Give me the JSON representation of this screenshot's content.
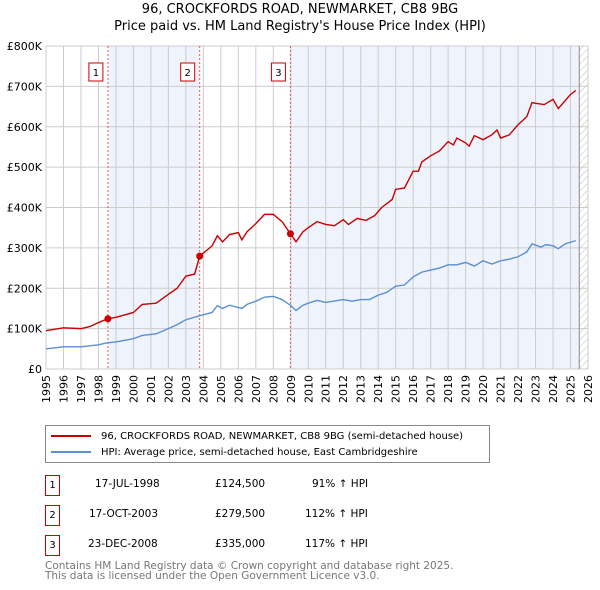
{
  "title": "96, CROCKFORDS ROAD, NEWMARKET, CB8 9BG",
  "subtitle": "Price paid vs. HM Land Registry's House Price Index (HPI)",
  "chart_data": {
    "type": "line",
    "xlim": [
      1995,
      2026
    ],
    "ylim": [
      0,
      800000
    ],
    "x_ticks": [
      "1995",
      "1996",
      "1997",
      "1998",
      "1999",
      "2000",
      "2001",
      "2002",
      "2003",
      "2004",
      "2005",
      "2006",
      "2007",
      "2008",
      "2009",
      "2010",
      "2011",
      "2012",
      "2013",
      "2014",
      "2015",
      "2016",
      "2017",
      "2018",
      "2019",
      "2020",
      "2021",
      "2022",
      "2023",
      "2024",
      "2025",
      "2026"
    ],
    "y_ticks": [
      {
        "v": 0,
        "label": "£0"
      },
      {
        "v": 100000,
        "label": "£100K"
      },
      {
        "v": 200000,
        "label": "£200K"
      },
      {
        "v": 300000,
        "label": "£300K"
      },
      {
        "v": 400000,
        "label": "£400K"
      },
      {
        "v": 500000,
        "label": "£500K"
      },
      {
        "v": 600000,
        "label": "£600K"
      },
      {
        "v": 700000,
        "label": "£700K"
      },
      {
        "v": 800000,
        "label": "£800K"
      }
    ],
    "grid": true,
    "shaded_ranges": [
      [
        1998.54,
        2003.79
      ],
      [
        2008.98,
        2025.5
      ]
    ],
    "hatched_from": 2025.5,
    "series": [
      {
        "name": "96, CROCKFORDS ROAD, NEWMARKET, CB8 9BG (semi-detached house)",
        "color": "#cc0000",
        "x": [
          1995,
          1996,
          1997,
          1997.5,
          1998,
          1998.54,
          1999,
          2000,
          2000.5,
          2001.3,
          2002,
          2002.5,
          2003,
          2003.5,
          2003.79,
          2004.5,
          2004.8,
          2005.1,
          2005.5,
          2006,
          2006.2,
          2006.5,
          2007,
          2007.5,
          2008,
          2008.5,
          2008.98,
          2009.3,
          2009.7,
          2010,
          2010.5,
          2011,
          2011.5,
          2012,
          2012.3,
          2012.8,
          2013.3,
          2013.8,
          2014.2,
          2014.8,
          2015,
          2015.5,
          2016,
          2016.3,
          2016.5,
          2017,
          2017.5,
          2018,
          2018.3,
          2018.5,
          2019,
          2019.2,
          2019.5,
          2020,
          2020.5,
          2020.8,
          2021,
          2021.5,
          2022,
          2022.5,
          2022.8,
          2023,
          2023.5,
          2024,
          2024.3,
          2024.7,
          2025,
          2025.3
        ],
        "y": [
          95000,
          102000,
          100000,
          105000,
          115000,
          124500,
          128000,
          140000,
          160000,
          163000,
          185000,
          200000,
          230000,
          235000,
          279500,
          305000,
          330000,
          315000,
          333000,
          338000,
          320000,
          340000,
          360000,
          383000,
          383000,
          365000,
          335000,
          315000,
          340000,
          350000,
          365000,
          358000,
          355000,
          370000,
          358000,
          373000,
          368000,
          380000,
          400000,
          420000,
          445000,
          448000,
          490000,
          490000,
          513000,
          528000,
          540000,
          563000,
          555000,
          572000,
          560000,
          552000,
          578000,
          568000,
          580000,
          592000,
          572000,
          580000,
          605000,
          625000,
          660000,
          658000,
          655000,
          668000,
          645000,
          665000,
          680000,
          690000
        ]
      },
      {
        "name": "HPI: Average price, semi-detached house, East Cambridgeshire",
        "color": "#5b8fd4",
        "x": [
          1995,
          1996,
          1997,
          1998,
          1998.5,
          1999,
          2000,
          2000.5,
          2001.3,
          2002,
          2002.5,
          2003,
          2003.8,
          2004.5,
          2004.8,
          2005.1,
          2005.5,
          2006.2,
          2006.5,
          2007,
          2007.5,
          2008,
          2008.5,
          2009,
          2009.3,
          2009.7,
          2010,
          2010.5,
          2011,
          2012,
          2012.5,
          2013,
          2013.5,
          2014,
          2014.5,
          2015,
          2015.5,
          2016,
          2016.5,
          2017,
          2017.5,
          2018,
          2018.5,
          2019,
          2019.5,
          2020,
          2020.5,
          2021,
          2021.5,
          2022,
          2022.5,
          2022.8,
          2023.3,
          2023.6,
          2024,
          2024.3,
          2024.7,
          2025.3
        ],
        "y": [
          50000,
          55000,
          55000,
          60000,
          65000,
          67000,
          75000,
          83000,
          87000,
          100000,
          110000,
          122000,
          132000,
          140000,
          157000,
          150000,
          158000,
          150000,
          160000,
          168000,
          178000,
          180000,
          172000,
          157000,
          145000,
          158000,
          163000,
          170000,
          165000,
          172000,
          168000,
          172000,
          172000,
          183000,
          190000,
          205000,
          208000,
          228000,
          240000,
          245000,
          250000,
          258000,
          258000,
          264000,
          255000,
          268000,
          260000,
          268000,
          272000,
          278000,
          290000,
          310000,
          302000,
          308000,
          305000,
          298000,
          310000,
          318000
        ]
      }
    ],
    "sales": [
      {
        "label": "1",
        "x": 1998.54,
        "y": 124500
      },
      {
        "label": "2",
        "x": 2003.79,
        "y": 279500
      },
      {
        "label": "3",
        "x": 2008.98,
        "y": 335000
      }
    ]
  },
  "legend": [
    "96, CROCKFORDS ROAD, NEWMARKET, CB8 9BG (semi-detached house)",
    "HPI: Average price, semi-detached house, East Cambridgeshire"
  ],
  "transactions": [
    {
      "n": "1",
      "date": "17-JUL-1998",
      "price": "£124,500",
      "hpi": "91% ↑ HPI"
    },
    {
      "n": "2",
      "date": "17-OCT-2003",
      "price": "£279,500",
      "hpi": "112% ↑ HPI"
    },
    {
      "n": "3",
      "date": "23-DEC-2008",
      "price": "£335,000",
      "hpi": "117% ↑ HPI"
    }
  ],
  "footer": [
    "Contains HM Land Registry data © Crown copyright and database right 2025.",
    "This data is licensed under the Open Government Licence v3.0."
  ]
}
